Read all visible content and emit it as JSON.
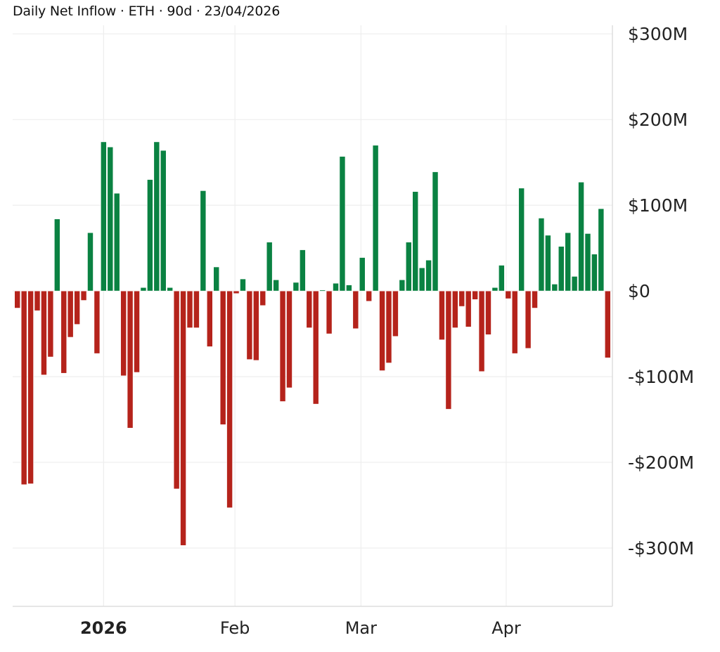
{
  "title": "Daily Net Inflow · ETH · 90d · 23/04/2026",
  "colors": {
    "positive": "#0a8242",
    "negative": "#b5231b",
    "grid": "#eeeeee",
    "axis": "#dddddd"
  },
  "chart_data": {
    "type": "bar",
    "title": "Daily Net Inflow · ETH · 90d · 23/04/2026",
    "xlabel": "",
    "ylabel": "",
    "unit": "$M",
    "ylim": [
      -368,
      310
    ],
    "grid": true,
    "y_axis_side": "right",
    "yticks": [
      {
        "value": 300,
        "label": "$300M"
      },
      {
        "value": 200,
        "label": "$200M"
      },
      {
        "value": 100,
        "label": "$100M"
      },
      {
        "value": 0,
        "label": "$0"
      },
      {
        "value": -100,
        "label": "-$100M"
      },
      {
        "value": -200,
        "label": "-$200M"
      },
      {
        "value": -300,
        "label": "-$300M"
      }
    ],
    "xticks": [
      {
        "bar_index": 14,
        "label": "2026",
        "bold": true
      },
      {
        "bar_index": 33.8,
        "label": "Feb",
        "bold": false
      },
      {
        "bar_index": 52.8,
        "label": "Mar",
        "bold": false
      },
      {
        "bar_index": 74.7,
        "label": "Apr",
        "bold": false
      }
    ],
    "values": [
      -20,
      -226,
      -225,
      -23,
      -98,
      -77,
      84,
      -96,
      -54,
      -39,
      -11,
      68,
      -73,
      174,
      168,
      114,
      -99,
      -160,
      -95,
      4,
      130,
      174,
      164,
      4,
      -231,
      -297,
      -43,
      -43,
      117,
      -65,
      28,
      -156,
      -253,
      -3,
      14,
      -80,
      -81,
      -17,
      57,
      13,
      -129,
      -113,
      10,
      48,
      -43,
      -132,
      1,
      -50,
      9,
      157,
      7,
      -44,
      39,
      -12,
      170,
      -93,
      -84,
      -53,
      13,
      57,
      116,
      27,
      36,
      139,
      -57,
      -138,
      -43,
      -18,
      -42,
      -10,
      -94,
      -51,
      4,
      30,
      -9,
      -73,
      120,
      -67,
      -20,
      85,
      65,
      8,
      52,
      68,
      17,
      127,
      67,
      43,
      96,
      -78
    ]
  }
}
